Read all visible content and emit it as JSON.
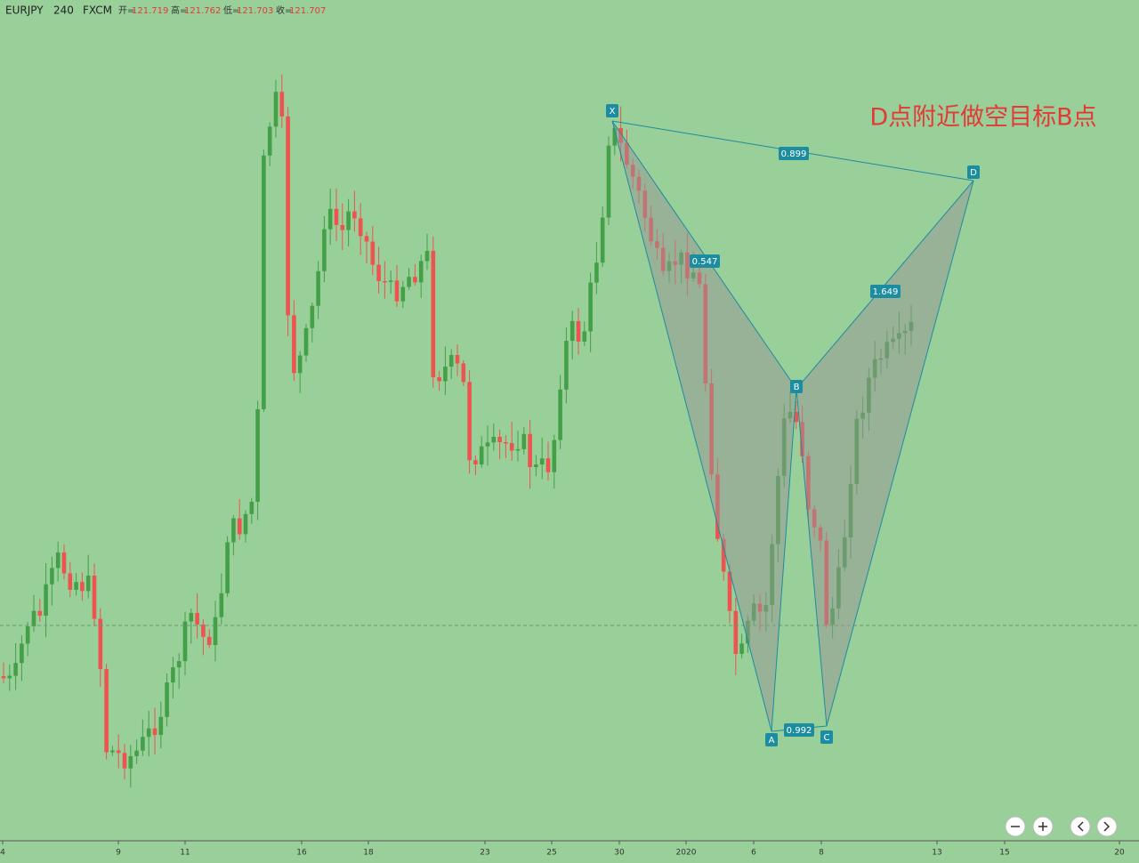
{
  "header": {
    "symbol": "EURJPY",
    "interval": "240",
    "exchange": "FXCM",
    "ohlc": [
      {
        "label": "开=",
        "value": "121.719"
      },
      {
        "label": "高=",
        "value": "121.762"
      },
      {
        "label": "低=",
        "value": "121.703"
      },
      {
        "label": "收=",
        "value": "121.707"
      }
    ]
  },
  "annotation": "D点附近做空目标B点",
  "pattern": {
    "points": [
      "X",
      "A",
      "B",
      "C",
      "D"
    ],
    "ratios": [
      "0.899",
      "0.547",
      "1.649",
      "0.992"
    ]
  },
  "x_axis": [
    "4",
    "9",
    "11",
    "16",
    "18",
    "23",
    "25",
    "30",
    "2020",
    "6",
    "8",
    "13",
    "15",
    "20"
  ]
}
